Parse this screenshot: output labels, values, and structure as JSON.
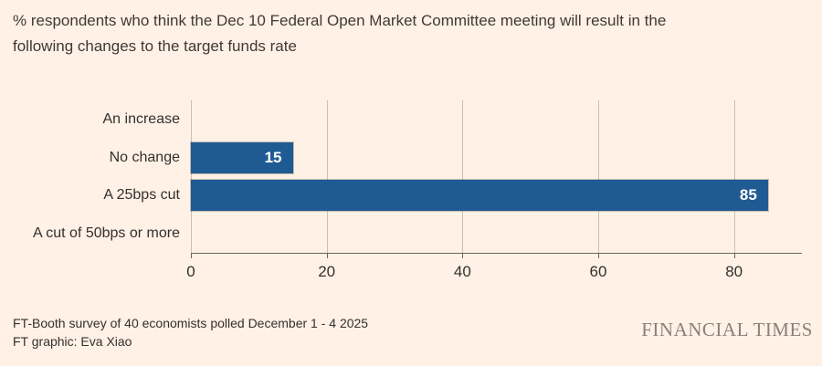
{
  "header": {
    "title_lines": [
      "% respondents who think the Dec 10 Federal Open Market Committee meeting will result in the",
      "following changes to the target funds rate"
    ]
  },
  "chart_data": {
    "type": "bar",
    "orientation": "horizontal",
    "title": "% respondents who think the Dec 10 Federal Open Market Committee meeting will result in the following changes to the target funds rate",
    "categories": [
      "An increase",
      "No change",
      "A 25bps cut",
      "A cut of 50bps or more"
    ],
    "values": [
      0,
      15,
      85,
      0
    ],
    "value_labels_shown": [
      "",
      "15",
      "85",
      ""
    ],
    "xlabel": "",
    "ylabel": "",
    "xlim": [
      0,
      90
    ],
    "xticks": [
      0,
      20,
      40,
      60,
      80
    ],
    "grid": "vertical",
    "legend": "none"
  },
  "footer": {
    "source_line": "FT-Booth survey of 40 economists polled December 1 - 4 2025",
    "credit_line": "FT graphic: Eva Xiao",
    "brand": "FINANCIAL TIMES"
  },
  "colors": {
    "background": "#FFF1E5",
    "bar": "#205A93",
    "bar_value_text": "#FFFFFF",
    "grid": "#CBC0B6",
    "axis": "#6B655E",
    "text": "#33302E",
    "brand_text": "#87817A"
  }
}
